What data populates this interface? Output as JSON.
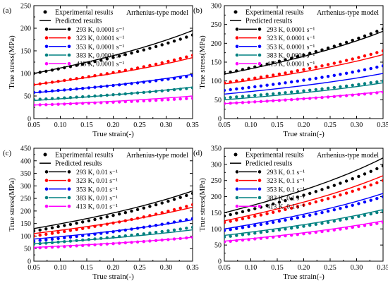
{
  "chart_data": [
    {
      "type": "scatter",
      "panel_label": "(a)",
      "model_label": "Arrhenius-type model",
      "xlabel": "True strain(-)",
      "ylabel": "True stress(MPa)",
      "xlim": [
        0.05,
        0.35
      ],
      "ylim": [
        0,
        250
      ],
      "xticks": [
        "0.05",
        "0.10",
        "0.15",
        "0.20",
        "0.25",
        "0.30",
        "0.35"
      ],
      "yticks": [
        "0",
        "50",
        "100",
        "150",
        "200",
        "250"
      ],
      "legend": {
        "experimental": "Experimental results",
        "predicted": "Predicted results"
      },
      "series": [
        {
          "name": "293 K, 0.0001 s⁻¹",
          "color": "#000000",
          "x": [
            0.05,
            0.35
          ],
          "exp_y": [
            100,
            185
          ],
          "pred_y": [
            100,
            195
          ]
        },
        {
          "name": "323 K, 0.0001 s⁻¹",
          "color": "#ff0000",
          "x": [
            0.05,
            0.35
          ],
          "exp_y": [
            75,
            140
          ],
          "pred_y": [
            75,
            135
          ]
        },
        {
          "name": "353 K, 0.0001 s⁻¹",
          "color": "#0000ff",
          "x": [
            0.05,
            0.35
          ],
          "exp_y": [
            58,
            95
          ],
          "pred_y": [
            57,
            98
          ]
        },
        {
          "name": "383 K, 0.0001 s⁻¹",
          "color": "#008080",
          "x": [
            0.05,
            0.35
          ],
          "exp_y": [
            42,
            68
          ],
          "pred_y": [
            40,
            70
          ]
        },
        {
          "name": "413 K, 0.0001 s⁻¹",
          "color": "#ff00ff",
          "x": [
            0.05,
            0.35
          ],
          "exp_y": [
            30,
            45
          ],
          "pred_y": [
            30,
            50
          ]
        }
      ]
    },
    {
      "type": "scatter",
      "panel_label": "(b)",
      "model_label": "Arrhenius-type model",
      "xlabel": "True strain(-)",
      "ylabel": "True stress(MPa)",
      "xlim": [
        0.05,
        0.35
      ],
      "ylim": [
        0,
        300
      ],
      "xticks": [
        "0.05",
        "0.10",
        "0.15",
        "0.20",
        "0.25",
        "0.30",
        "0.35"
      ],
      "yticks": [
        "0",
        "50",
        "100",
        "150",
        "200",
        "250",
        "300"
      ],
      "legend": {
        "experimental": "Experimental results",
        "predicted": "Predicted results"
      },
      "series": [
        {
          "name": "293 K, 0.0001 s⁻¹",
          "color": "#000000",
          "x": [
            0.05,
            0.35
          ],
          "exp_y": [
            120,
            238
          ],
          "pred_y": [
            118,
            232
          ]
        },
        {
          "name": "323 K, 0.0001 s⁻¹",
          "color": "#ff0000",
          "x": [
            0.05,
            0.35
          ],
          "exp_y": [
            95,
            180
          ],
          "pred_y": [
            92,
            170
          ]
        },
        {
          "name": "353 K, 0.0001 s⁻¹",
          "color": "#0000ff",
          "x": [
            0.05,
            0.35
          ],
          "exp_y": [
            75,
            140
          ],
          "pred_y": [
            65,
            120
          ]
        },
        {
          "name": "383 K, 0.0001 s⁻¹",
          "color": "#008080",
          "x": [
            0.05,
            0.35
          ],
          "exp_y": [
            55,
            100
          ],
          "pred_y": [
            50,
            95
          ]
        },
        {
          "name": "413 K, 0.0001 s⁻¹",
          "color": "#ff00ff",
          "x": [
            0.05,
            0.35
          ],
          "exp_y": [
            40,
            70
          ],
          "pred_y": [
            40,
            72
          ]
        }
      ]
    },
    {
      "type": "scatter",
      "panel_label": "(c)",
      "model_label": "Arrhenius-type model",
      "xlabel": "True strain(-)",
      "ylabel": "True stress(MPa)",
      "xlim": [
        0.05,
        0.35
      ],
      "ylim": [
        0,
        450
      ],
      "xticks": [
        "0.05",
        "0.10",
        "0.15",
        "0.20",
        "0.25",
        "0.30",
        "0.35"
      ],
      "yticks": [
        "0",
        "50",
        "100",
        "150",
        "200",
        "250",
        "300",
        "350",
        "400",
        "450"
      ],
      "legend": {
        "experimental": "Experimental results",
        "predicted": "Predicted results"
      },
      "series": [
        {
          "name": "293 K, 0.01 s⁻¹",
          "color": "#000000",
          "x": [
            0.05,
            0.35
          ],
          "exp_y": [
            120,
            270
          ],
          "pred_y": [
            130,
            280
          ]
        },
        {
          "name": "323 K, 0.01 s⁻¹",
          "color": "#ff0000",
          "x": [
            0.05,
            0.35
          ],
          "exp_y": [
            100,
            225
          ],
          "pred_y": [
            110,
            215
          ]
        },
        {
          "name": "353 K, 0.01 s⁻¹",
          "color": "#0000ff",
          "x": [
            0.05,
            0.35
          ],
          "exp_y": [
            80,
            170
          ],
          "pred_y": [
            88,
            165
          ]
        },
        {
          "name": "383 K, 0.01 s⁻¹",
          "color": "#008080",
          "x": [
            0.05,
            0.35
          ],
          "exp_y": [
            68,
            135
          ],
          "pred_y": [
            70,
            125
          ]
        },
        {
          "name": "413 K, 0.01 s⁻¹",
          "color": "#ff00ff",
          "x": [
            0.05,
            0.35
          ],
          "exp_y": [
            52,
            95
          ],
          "pred_y": [
            55,
            95
          ]
        }
      ]
    },
    {
      "type": "scatter",
      "panel_label": "(d)",
      "model_label": "Arrhenius-type model",
      "xlabel": "True strain(-)",
      "ylabel": "True stress(MPa)",
      "xlim": [
        0.05,
        0.35
      ],
      "ylim": [
        0,
        350
      ],
      "xticks": [
        "0.05",
        "0.10",
        "0.15",
        "0.20",
        "0.25",
        "0.30",
        "0.35"
      ],
      "yticks": [
        "0",
        "50",
        "100",
        "150",
        "200",
        "250",
        "300",
        "350"
      ],
      "legend": {
        "experimental": "Experimental results",
        "predicted": "Predicted results"
      },
      "series": [
        {
          "name": "293 K, 0.1 s⁻¹",
          "color": "#000000",
          "x": [
            0.05,
            0.35
          ],
          "exp_y": [
            140,
            295
          ],
          "pred_y": [
            150,
            320
          ]
        },
        {
          "name": "323 K, 0.1 s⁻¹",
          "color": "#ff0000",
          "x": [
            0.05,
            0.35
          ],
          "exp_y": [
            120,
            250
          ],
          "pred_y": [
            125,
            265
          ]
        },
        {
          "name": "353 K, 0.1 s⁻¹",
          "color": "#0000ff",
          "x": [
            0.05,
            0.35
          ],
          "exp_y": [
            95,
            200
          ],
          "pred_y": [
            100,
            210
          ]
        },
        {
          "name": "383 K, 0.1 s⁻¹",
          "color": "#008080",
          "x": [
            0.05,
            0.35
          ],
          "exp_y": [
            75,
            155
          ],
          "pred_y": [
            80,
            160
          ]
        },
        {
          "name": "413 K, 0.1 s⁻¹",
          "color": "#ff00ff",
          "x": [
            0.05,
            0.35
          ],
          "exp_y": [
            60,
            120
          ],
          "pred_y": [
            62,
            125
          ]
        }
      ]
    }
  ]
}
